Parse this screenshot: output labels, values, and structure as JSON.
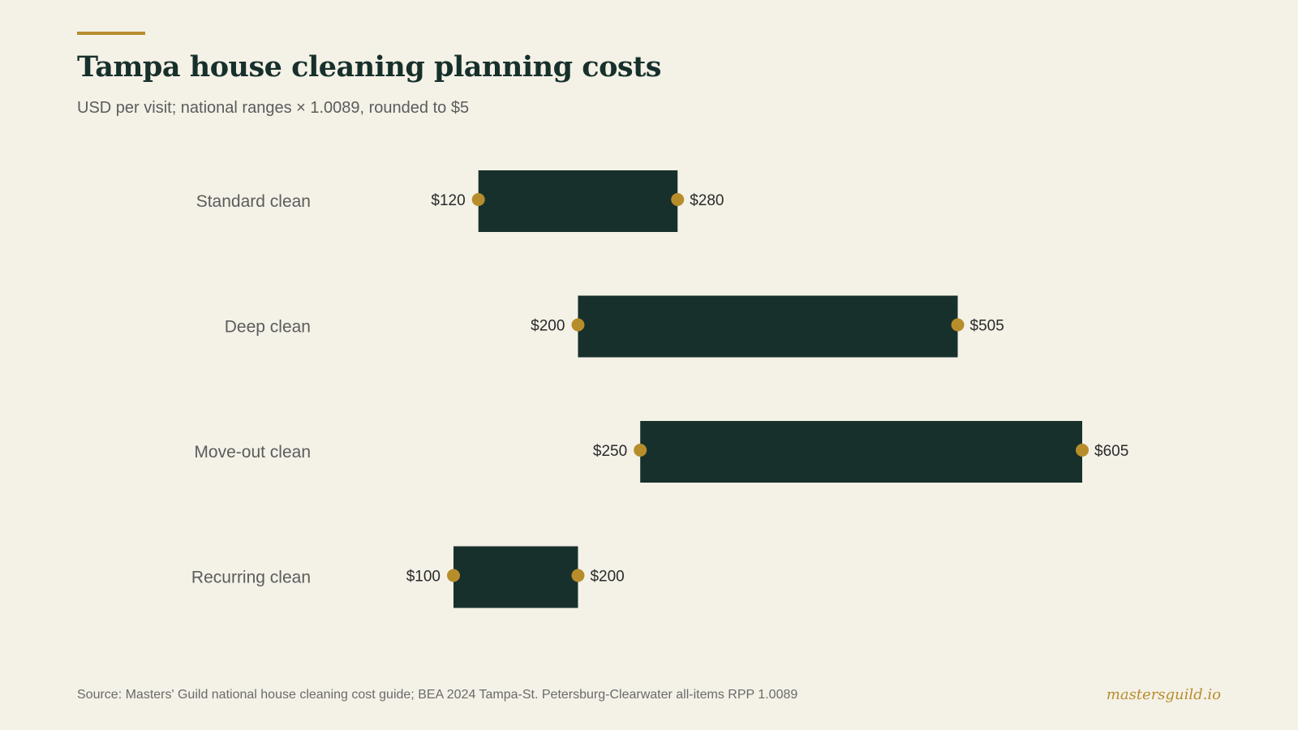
{
  "header": {
    "title": "Tampa house cleaning planning costs",
    "subtitle": "USD per visit; national ranges × 1.0089, rounded to $5"
  },
  "footer": {
    "source": "Source: Masters' Guild national house cleaning cost guide; BEA 2024 Tampa-St. Petersburg-Clearwater all-items RPP 1.0089",
    "brand": "mastersguild.io"
  },
  "colors": {
    "background": "#f4f1e7",
    "bar": "#17302b",
    "marker": "#b78d2c",
    "accent": "#b78d2c",
    "label_text": "#5c5c5c",
    "value_text": "#2a2a2a"
  },
  "chart_data": {
    "type": "range_bar",
    "orientation": "horizontal",
    "title": "Tampa house cleaning planning costs",
    "subtitle": "USD per visit; national ranges × 1.0089, rounded to $5",
    "categories": [
      "Standard clean",
      "Deep clean",
      "Move-out clean",
      "Recurring clean"
    ],
    "low": [
      120,
      200,
      250,
      100
    ],
    "high": [
      280,
      505,
      605,
      200
    ],
    "low_labels": [
      "$120",
      "$200",
      "$250",
      "$100"
    ],
    "high_labels": [
      "$280",
      "$505",
      "$605",
      "$200"
    ],
    "units": "USD",
    "grid": false,
    "legend": "none"
  }
}
